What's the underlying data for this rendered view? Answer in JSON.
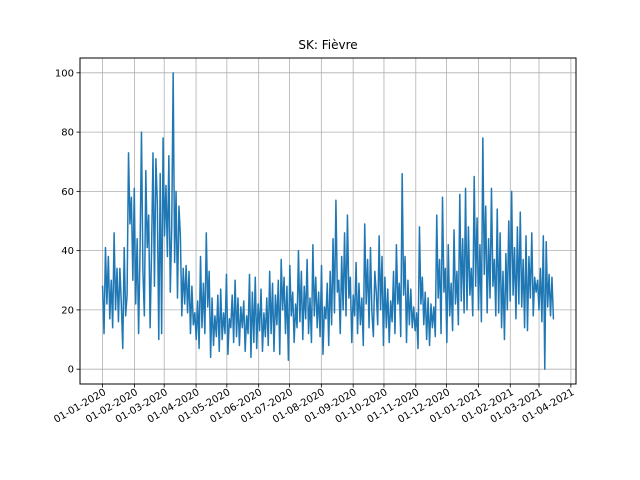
{
  "chart_data": {
    "type": "line",
    "title": "SK: Fièvre",
    "xlabel": "",
    "ylabel": "",
    "x_start": "2020-01-01",
    "x_end": "2021-03-15",
    "xlim": [
      "2019-12-10",
      "2021-04-06"
    ],
    "ylim": [
      -5,
      105
    ],
    "grid": true,
    "x_ticks": [
      "01-01-2020",
      "01-02-2020",
      "01-03-2020",
      "01-04-2020",
      "01-05-2020",
      "01-06-2020",
      "01-07-2020",
      "01-08-2020",
      "01-09-2020",
      "01-10-2020",
      "01-11-2020",
      "01-12-2020",
      "01-01-2021",
      "01-02-2021",
      "01-03-2021",
      "01-04-2021"
    ],
    "y_ticks": [
      0,
      20,
      40,
      60,
      80,
      100
    ],
    "series": [
      {
        "color": "#1f77b4",
        "values": [
          28,
          12,
          41,
          22,
          38,
          17,
          30,
          14,
          46,
          20,
          34,
          16,
          34,
          22,
          7,
          41,
          18,
          25,
          73,
          49,
          58,
          30,
          61,
          22,
          44,
          12,
          40,
          80,
          33,
          18,
          67,
          41,
          52,
          14,
          40,
          73,
          28,
          71,
          56,
          10,
          66,
          12,
          78,
          45,
          62,
          38,
          72,
          26,
          48,
          100,
          36,
          60,
          24,
          55,
          45,
          18,
          34,
          22,
          35,
          19,
          33,
          12,
          28,
          15,
          19,
          10,
          23,
          7,
          38,
          14,
          29,
          12,
          46,
          21,
          33,
          4,
          24,
          8,
          18,
          11,
          25,
          6,
          27,
          10,
          19,
          12,
          32,
          5,
          17,
          14,
          25,
          9,
          30,
          11,
          24,
          8,
          21,
          14,
          23,
          6,
          18,
          12,
          32,
          4,
          26,
          9,
          31,
          7,
          22,
          13,
          27,
          6,
          19,
          11,
          24,
          8,
          33,
          12,
          29,
          6,
          25,
          15,
          30,
          5,
          37,
          20,
          31,
          12,
          28,
          3,
          35,
          18,
          26,
          9,
          22,
          14,
          40,
          16,
          33,
          10,
          28,
          17,
          37,
          12,
          24,
          9,
          42,
          18,
          31,
          14,
          26,
          11,
          35,
          5,
          21,
          17,
          29,
          8,
          33,
          15,
          44,
          19,
          57,
          26,
          30,
          12,
          38,
          20,
          46,
          18,
          52,
          24,
          31,
          9,
          25,
          18,
          36,
          12,
          29,
          15,
          24,
          8,
          49,
          22,
          37,
          14,
          41,
          19,
          11,
          33,
          26,
          15,
          45,
          20,
          38,
          8,
          31,
          14,
          27,
          9,
          23,
          16,
          33,
          12,
          42,
          22,
          29,
          11,
          66,
          25,
          38,
          9,
          30,
          15,
          27,
          14,
          21,
          13,
          19,
          7,
          48,
          22,
          31,
          15,
          26,
          10,
          24,
          8,
          22,
          14,
          21,
          11,
          52,
          24,
          37,
          12,
          58,
          26,
          34,
          9,
          42,
          18,
          29,
          13,
          47,
          22,
          33,
          15,
          59,
          23,
          44,
          19,
          61,
          20,
          48,
          25,
          34,
          18,
          65,
          28,
          51,
          20,
          42,
          16,
          78,
          32,
          55,
          19,
          44,
          24,
          61,
          28,
          37,
          18,
          54,
          19,
          46,
          14,
          33,
          10,
          39,
          20,
          50,
          23,
          60,
          25,
          41,
          17,
          48,
          22,
          53,
          21,
          37,
          14,
          45,
          13,
          38,
          24,
          46,
          18,
          31,
          26,
          30,
          20,
          34,
          16,
          45,
          0,
          43,
          21,
          32,
          18,
          31,
          17
        ]
      }
    ]
  }
}
